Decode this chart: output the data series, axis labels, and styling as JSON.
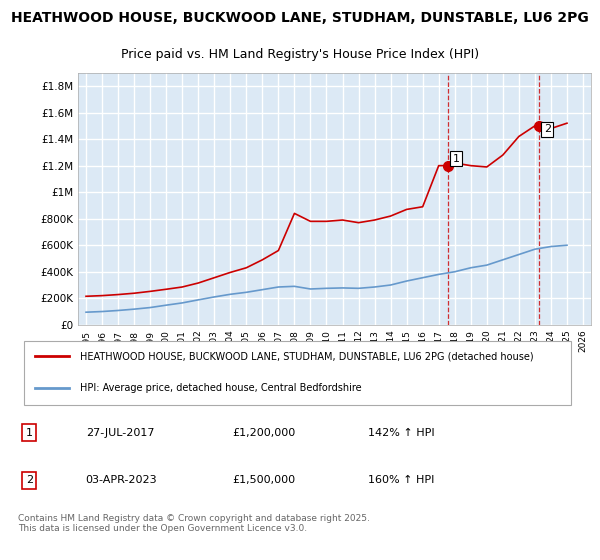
{
  "title_line1": "HEATHWOOD HOUSE, BUCKWOOD LANE, STUDHAM, DUNSTABLE, LU6 2PG",
  "title_line2": "Price paid vs. HM Land Registry's House Price Index (HPI)",
  "background_color": "#dce9f5",
  "plot_bg_color": "#dce9f5",
  "grid_color": "#ffffff",
  "red_line_color": "#cc0000",
  "blue_line_color": "#6699cc",
  "ylim": [
    0,
    1900000
  ],
  "yticks": [
    0,
    200000,
    400000,
    600000,
    800000,
    1000000,
    1200000,
    1400000,
    1600000,
    1800000
  ],
  "ytick_labels": [
    "£0",
    "£200K",
    "£400K",
    "£600K",
    "£800K",
    "£1M",
    "£1.2M",
    "£1.4M",
    "£1.6M",
    "£1.8M"
  ],
  "sale1_year": 2017.57,
  "sale1_price": 1200000,
  "sale1_label": "1",
  "sale2_year": 2023.25,
  "sale2_price": 1500000,
  "sale2_label": "2",
  "vline_color": "#cc0000",
  "vline_style": "dashed",
  "legend_label_red": "HEATHWOOD HOUSE, BUCKWOOD LANE, STUDHAM, DUNSTABLE, LU6 2PG (detached house)",
  "legend_label_blue": "HPI: Average price, detached house, Central Bedfordshire",
  "annotation1_date": "27-JUL-2017",
  "annotation1_price": "£1,200,000",
  "annotation1_hpi": "142% ↑ HPI",
  "annotation2_date": "03-APR-2023",
  "annotation2_price": "£1,500,000",
  "annotation2_hpi": "160% ↑ HPI",
  "footer": "Contains HM Land Registry data © Crown copyright and database right 2025.\nThis data is licensed under the Open Government Licence v3.0.",
  "red_years": [
    1995,
    1996,
    1997,
    1998,
    1999,
    2000,
    2001,
    2002,
    2003,
    2004,
    2005,
    2006,
    2007,
    2008,
    2009,
    2010,
    2011,
    2012,
    2013,
    2014,
    2015,
    2016,
    2017,
    2017.57,
    2018,
    2019,
    2020,
    2021,
    2022,
    2023,
    2023.25,
    2024,
    2025
  ],
  "red_values": [
    215000,
    220000,
    228000,
    238000,
    252000,
    268000,
    285000,
    315000,
    355000,
    395000,
    430000,
    490000,
    560000,
    840000,
    780000,
    780000,
    790000,
    770000,
    790000,
    820000,
    870000,
    890000,
    1200000,
    1200000,
    1220000,
    1200000,
    1190000,
    1280000,
    1420000,
    1500000,
    1500000,
    1480000,
    1520000
  ],
  "blue_years": [
    1995,
    1996,
    1997,
    1998,
    1999,
    2000,
    2001,
    2002,
    2003,
    2004,
    2005,
    2006,
    2007,
    2008,
    2009,
    2010,
    2011,
    2012,
    2013,
    2014,
    2015,
    2016,
    2017,
    2018,
    2019,
    2020,
    2021,
    2022,
    2023,
    2024,
    2025
  ],
  "blue_values": [
    95000,
    100000,
    108000,
    118000,
    130000,
    148000,
    165000,
    188000,
    210000,
    230000,
    245000,
    265000,
    285000,
    290000,
    270000,
    275000,
    278000,
    275000,
    285000,
    300000,
    330000,
    355000,
    380000,
    400000,
    430000,
    450000,
    490000,
    530000,
    570000,
    590000,
    600000
  ],
  "xlim_start": 1994.5,
  "xlim_end": 2026.5
}
